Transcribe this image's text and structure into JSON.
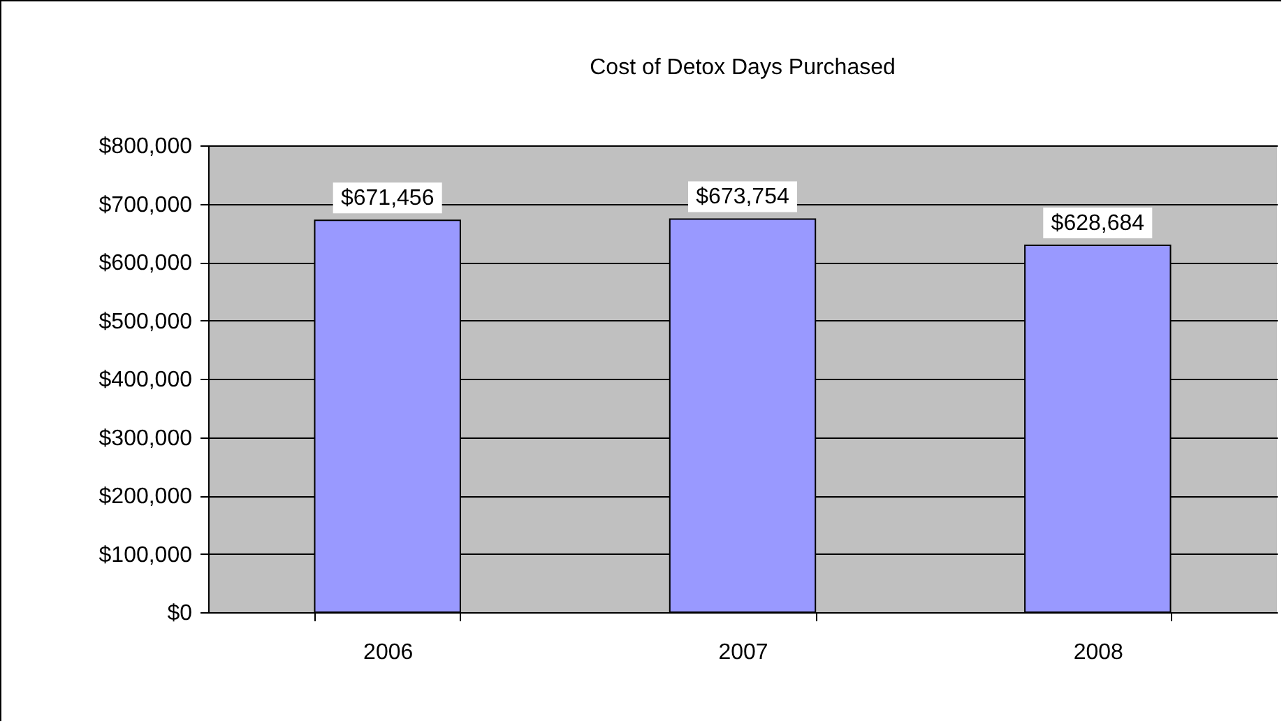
{
  "chart_data": {
    "type": "bar",
    "title": "Cost of Detox Days Purchased",
    "categories": [
      "2006",
      "2007",
      "2008"
    ],
    "series": [
      {
        "color": "#9999ff",
        "values": [
          671456,
          673754,
          628684
        ]
      }
    ],
    "ylim": [
      0,
      800000
    ],
    "yticks": [
      {
        "value": 0,
        "label": "$0"
      },
      {
        "value": 100000,
        "label": "$100,000"
      },
      {
        "value": 200000,
        "label": "$200,000"
      },
      {
        "value": 300000,
        "label": "$300,000"
      },
      {
        "value": 400000,
        "label": "$400,000"
      },
      {
        "value": 500000,
        "label": "$500,000"
      },
      {
        "value": 600000,
        "label": "$600,000"
      },
      {
        "value": 700000,
        "label": "$700,000"
      },
      {
        "value": 800000,
        "label": "$800,000"
      }
    ],
    "value_labels": [
      "$671,456",
      "$673,754",
      "$628,684"
    ],
    "grid": "y"
  }
}
